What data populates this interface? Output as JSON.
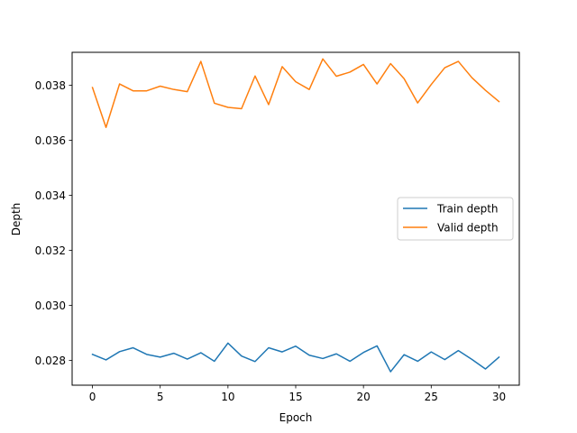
{
  "chart_data": {
    "type": "line",
    "xlabel": "Epoch",
    "ylabel": "Depth",
    "xlim": [
      -1.5,
      31.5
    ],
    "ylim": [
      0.0271,
      0.0392
    ],
    "xticks": [
      0,
      5,
      10,
      15,
      20,
      25,
      30
    ],
    "yticks": [
      0.028,
      0.03,
      0.032,
      0.034,
      0.036,
      0.038
    ],
    "ytick_labels": [
      "0.028",
      "0.030",
      "0.032",
      "0.034",
      "0.036",
      "0.038"
    ],
    "grid": false,
    "legend": "center-right",
    "x": [
      0,
      1,
      2,
      3,
      4,
      5,
      6,
      7,
      8,
      9,
      10,
      11,
      12,
      13,
      14,
      15,
      16,
      17,
      18,
      19,
      20,
      21,
      22,
      23,
      24,
      25,
      26,
      27,
      28,
      29,
      30
    ],
    "series": [
      {
        "name": "Train depth",
        "color": "#1f77b4",
        "values": [
          0.02822,
          0.02802,
          0.02832,
          0.02846,
          0.02822,
          0.02812,
          0.02826,
          0.02805,
          0.02828,
          0.02797,
          0.02863,
          0.02816,
          0.02796,
          0.02846,
          0.02831,
          0.02852,
          0.02819,
          0.02807,
          0.02824,
          0.02797,
          0.02829,
          0.02853,
          0.02759,
          0.02821,
          0.02797,
          0.02831,
          0.02803,
          0.02836,
          0.02804,
          0.02769,
          0.02812
        ]
      },
      {
        "name": "Valid depth",
        "color": "#ff7f0e",
        "values": [
          0.03792,
          0.03647,
          0.03805,
          0.0378,
          0.0378,
          0.03797,
          0.03785,
          0.03777,
          0.03887,
          0.03735,
          0.0372,
          0.03715,
          0.03834,
          0.0373,
          0.03868,
          0.03813,
          0.03785,
          0.03896,
          0.03833,
          0.03848,
          0.03876,
          0.03805,
          0.03879,
          0.03824,
          0.03736,
          0.03803,
          0.03864,
          0.03887,
          0.03828,
          0.03782,
          0.03741
        ]
      }
    ]
  }
}
